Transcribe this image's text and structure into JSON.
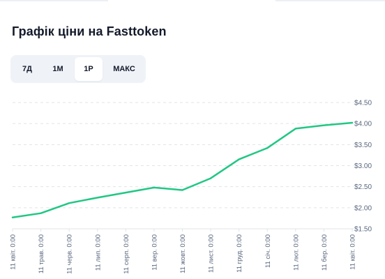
{
  "title": "Графік ціни на Fasttoken",
  "range_tabs": [
    {
      "label": "7Д",
      "active": false
    },
    {
      "label": "1M",
      "active": false
    },
    {
      "label": "1Р",
      "active": true
    },
    {
      "label": "МАКС",
      "active": false
    }
  ],
  "colors": {
    "line": "#21c784",
    "grid": "#e0e3ea",
    "tab_bg": "#eff2f7",
    "text": "#141a2b",
    "axis_text": "#58667e"
  },
  "chart_data": {
    "type": "line",
    "x": [
      "11 квіт. 0:00",
      "11 трав. 0:00",
      "11 черв. 0:00",
      "11 лип. 0:00",
      "11 серп. 0:00",
      "11 вер. 0:00",
      "11 жовт. 0:00",
      "11 лист. 0:00",
      "11 груд. 0:00",
      "11 січ. 0:00",
      "11 лют. 0:00",
      "11 бер. 0:00",
      "11 квіт. 0:00"
    ],
    "y_ticks": [
      "$4.50",
      "$4.00",
      "$3.50",
      "$3.00",
      "$2.50",
      "$2.00",
      "$1.50"
    ],
    "ylim": [
      1.5,
      4.5
    ],
    "grid": true,
    "series": [
      {
        "values": [
          1.77,
          1.87,
          2.11,
          2.24,
          2.36,
          2.48,
          2.42,
          2.7,
          3.15,
          3.42,
          3.88,
          3.96,
          4.02
        ]
      }
    ]
  }
}
